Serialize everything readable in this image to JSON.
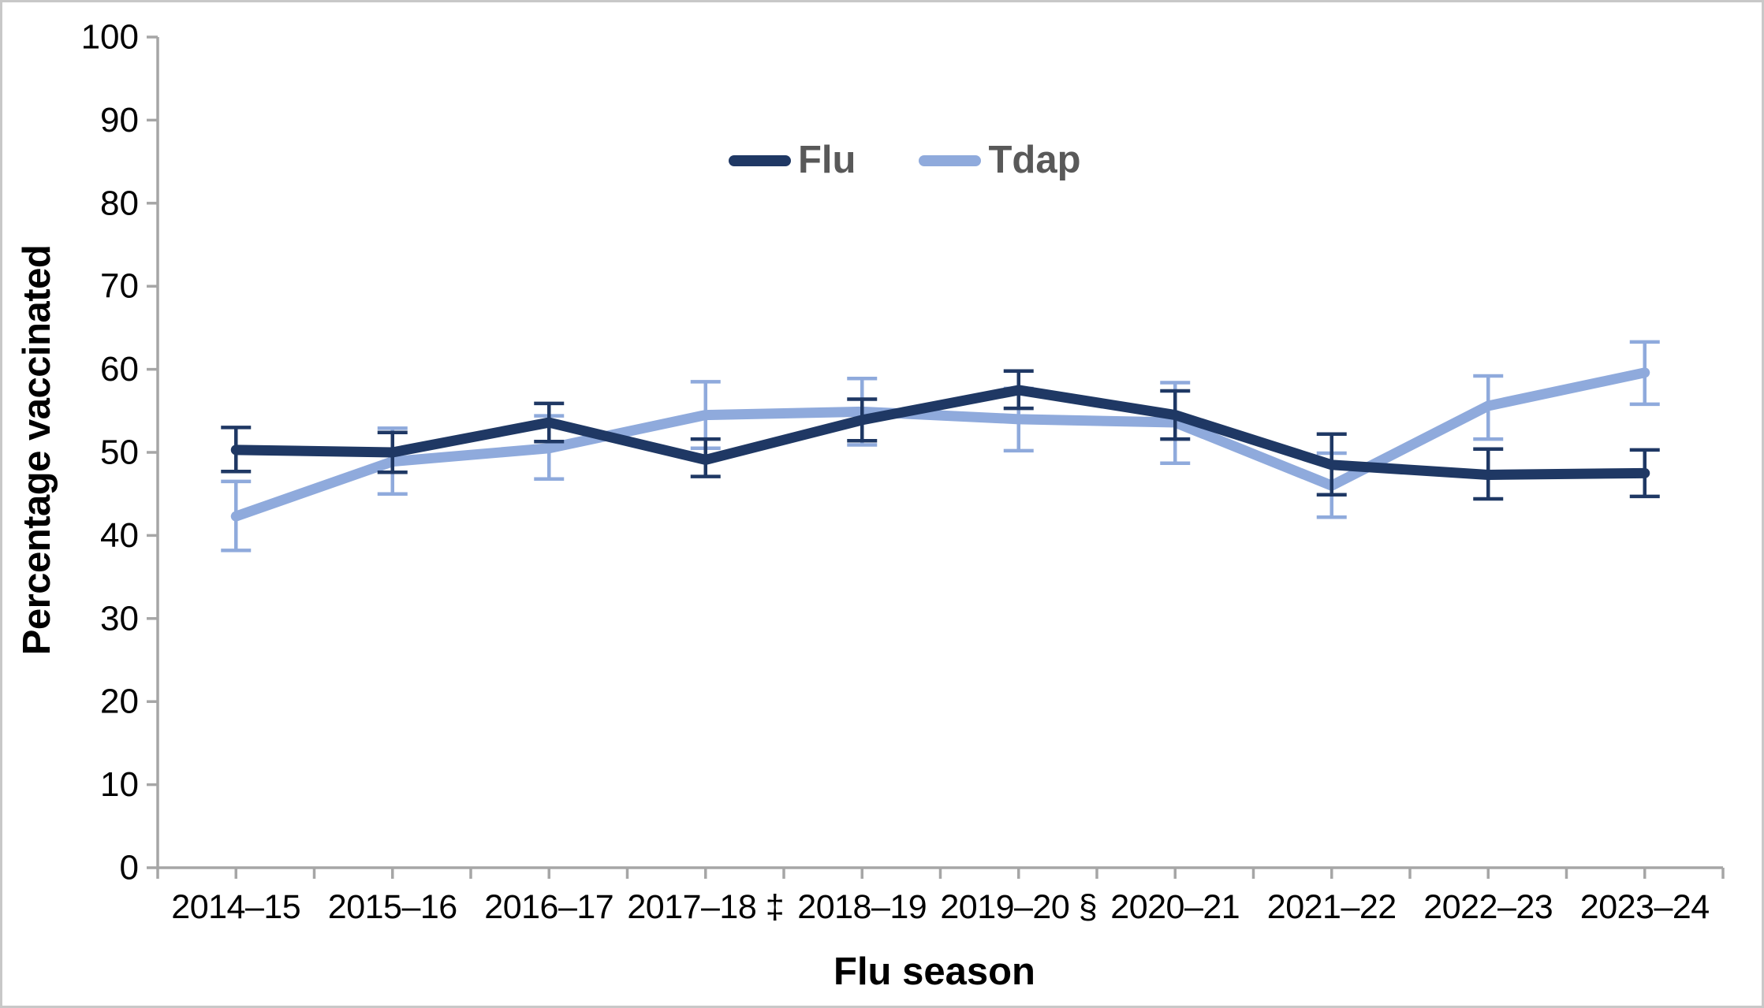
{
  "figure": {
    "background_color": "#FFFFFF",
    "border_color": "#C8C8C8"
  },
  "chart_data": {
    "type": "line",
    "title": "",
    "xlabel": "Flu season",
    "ylabel": "Percentage vaccinated",
    "ylim": [
      0,
      100
    ],
    "yticks": [
      0,
      10,
      20,
      30,
      40,
      50,
      60,
      70,
      80,
      90,
      100
    ],
    "grid": false,
    "legend_position": "top-center",
    "error_bars": true,
    "axis_color": "#A6A6A6",
    "tick_label_color": "#000000",
    "legend_text_color": "#595959",
    "categories": [
      "2014–15",
      "2015–16",
      "2016–17",
      "2017–18 ‡",
      "2018–19",
      "2019–20 §",
      "2020–21",
      "2021–22",
      "2022–23",
      "2023–24"
    ],
    "series": [
      {
        "name": "Flu",
        "color": "#1F3864",
        "values": [
          50.3,
          50.0,
          53.6,
          49.1,
          53.9,
          57.5,
          54.5,
          48.5,
          47.3,
          47.5
        ],
        "ci_low": [
          47.7,
          47.6,
          51.3,
          47.1,
          51.4,
          55.3,
          51.6,
          44.9,
          44.4,
          44.7
        ],
        "ci_high": [
          53.0,
          52.4,
          55.9,
          51.6,
          56.4,
          59.8,
          57.4,
          52.2,
          50.4,
          50.3
        ]
      },
      {
        "name": "Tdap",
        "color": "#8FAADC",
        "values": [
          42.3,
          48.9,
          50.5,
          54.5,
          54.9,
          54.0,
          53.6,
          46.0,
          55.6,
          59.6
        ],
        "ci_low": [
          38.2,
          45.0,
          46.8,
          50.5,
          50.9,
          50.2,
          48.7,
          42.2,
          51.6,
          55.8
        ],
        "ci_high": [
          46.5,
          52.9,
          54.4,
          58.5,
          58.9,
          57.7,
          58.4,
          49.9,
          59.2,
          63.3
        ]
      }
    ]
  }
}
